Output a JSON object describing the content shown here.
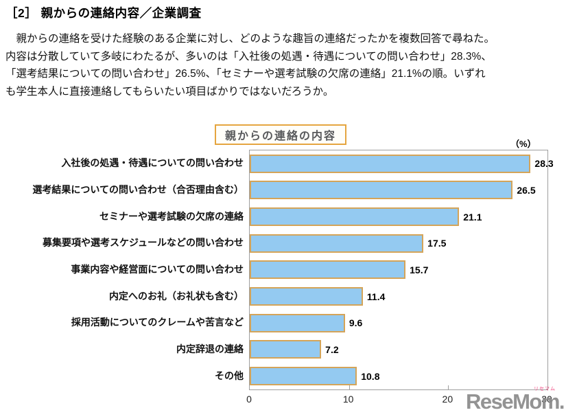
{
  "page": {
    "title": "［2］ 親からの連絡内容／企業調査",
    "paragraph_lines": [
      "　親からの連絡を受けた経験のある企業に対し、どのような趣旨の連絡だったかを複数回答で尋ねた。",
      "内容は分散していて多岐にわたるが、多いのは「入社後の処遇・待遇についての問い合わせ」28.3%、",
      "「選考結果についての問い合わせ」26.5%、「セミナーや選考試験の欠席の連絡」21.1%の順。いずれ",
      "も学生本人に直接連絡してもらいたい項目ばかりではないだろうか。"
    ]
  },
  "chart": {
    "title": "親からの連絡の内容",
    "unit_label": "（%）"
  },
  "watermark": {
    "logo_text": "ReseMom.",
    "logo_tiny_text": "リセマム",
    "logo_color": "#8A8A8A",
    "tiny_color": "#F0447E"
  },
  "colors": {
    "bar_fill": "#94CAF1",
    "bar_border": "#D4A459",
    "plot_border": "#9E9E9E",
    "title_box_border": "#E5A53F",
    "title_text": "#58595B"
  },
  "chart_data": {
    "type": "bar",
    "orientation": "horizontal",
    "title": "親からの連絡の内容",
    "categories": [
      "入社後の処遇・待遇についての問い合わせ",
      "選考結果についての問い合わせ（合否理由含む）",
      "セミナーや選考試験の欠席の連絡",
      "募集要項や選考スケジュールなどの問い合わせ",
      "事業内容や経営面についての問い合わせ",
      "内定へのお礼（お礼状も含む）",
      "採用活動についてのクレームや苦言など",
      "内定辞退の連絡",
      "その他"
    ],
    "values": [
      28.3,
      26.5,
      21.1,
      17.5,
      15.7,
      11.4,
      9.6,
      7.2,
      10.8
    ],
    "xlabel": "（%）",
    "xlim": [
      0,
      30
    ],
    "x_ticks": [
      0,
      10,
      20,
      30
    ],
    "grid": false,
    "legend": false
  }
}
